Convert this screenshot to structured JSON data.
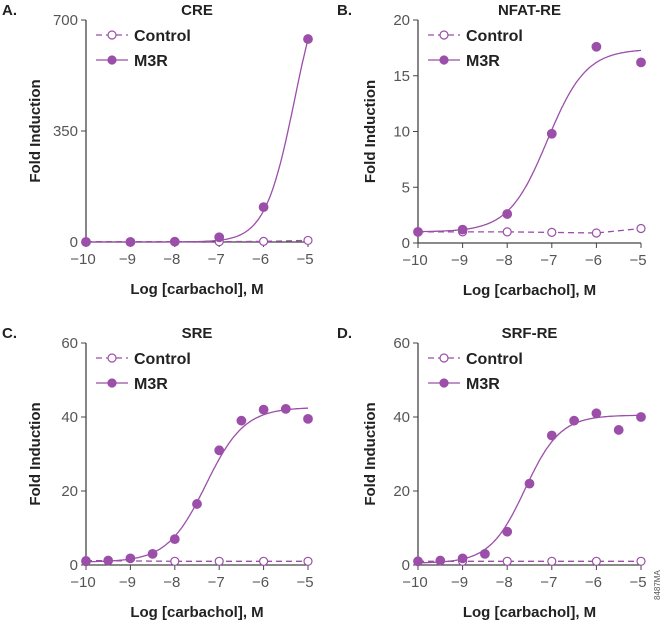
{
  "colors": {
    "series": "#9b4fa8",
    "axis": "#444444",
    "text": "#222222"
  },
  "figure_id": "8487MA",
  "chart_data": [
    {
      "type": "line",
      "panel": "A.",
      "title": "CRE",
      "xlabel": "Log [carbachol], M",
      "ylabel": "Fold Induction",
      "xlim": [
        -10,
        -5
      ],
      "ylim": [
        0,
        700
      ],
      "xticks": [
        "−10",
        "−9",
        "−8",
        "−7",
        "−6",
        "−5"
      ],
      "xtick_values": [
        -10,
        -9,
        -8,
        -7,
        -6,
        -5
      ],
      "yticks": [
        "0",
        "350",
        "700"
      ],
      "ytick_values": [
        0,
        350,
        700
      ],
      "legend": "top-left",
      "series": [
        {
          "name": "Control",
          "marker": "open-circle",
          "line": "dashed",
          "x": [
            -10,
            -9,
            -8,
            -7,
            -6,
            -5
          ],
          "y": [
            1,
            1,
            1,
            1,
            2,
            5
          ]
        },
        {
          "name": "M3R",
          "marker": "filled-circle",
          "line": "solid",
          "x": [
            -10,
            -9,
            -8,
            -7,
            -6,
            -5
          ],
          "y": [
            0,
            0,
            1,
            15,
            110,
            640
          ],
          "fit": {
            "bottom": 0,
            "top": 900,
            "logEC50": -5.3,
            "hill": 1.3
          }
        }
      ]
    },
    {
      "type": "line",
      "panel": "B.",
      "title": "NFAT-RE",
      "xlabel": "Log [carbachol], M",
      "ylabel": "Fold Induction",
      "xlim": [
        -10,
        -5
      ],
      "ylim": [
        0,
        20
      ],
      "xticks": [
        "−10",
        "−9",
        "−8",
        "−7",
        "−6",
        "−5"
      ],
      "xtick_values": [
        -10,
        -9,
        -8,
        -7,
        -6,
        -5
      ],
      "yticks": [
        "0",
        "5",
        "10",
        "15",
        "20"
      ],
      "ytick_values": [
        0,
        5,
        10,
        15,
        20
      ],
      "legend": "top-left",
      "series": [
        {
          "name": "Control",
          "marker": "open-circle",
          "line": "dashed",
          "x": [
            -10,
            -9,
            -8,
            -7,
            -6,
            -5
          ],
          "y": [
            1,
            1,
            1,
            0.95,
            0.9,
            1.3
          ]
        },
        {
          "name": "M3R",
          "marker": "filled-circle",
          "line": "solid",
          "x": [
            -10,
            -9,
            -8,
            -7,
            -6,
            -5
          ],
          "y": [
            1,
            1.2,
            2.6,
            9.8,
            17.6,
            16.2
          ],
          "fit": {
            "bottom": 1,
            "top": 17.4,
            "logEC50": -7.1,
            "hill": 1
          }
        }
      ]
    },
    {
      "type": "line",
      "panel": "C.",
      "title": "SRE",
      "xlabel": "Log [carbachol], M",
      "ylabel": "Fold Induction",
      "xlim": [
        -10,
        -5
      ],
      "ylim": [
        0,
        60
      ],
      "xticks": [
        "−10",
        "−9",
        "−8",
        "−7",
        "−6",
        "−5"
      ],
      "xtick_values": [
        -10,
        -9,
        -8,
        -7,
        -6,
        -5
      ],
      "yticks": [
        "0",
        "20",
        "40",
        "60"
      ],
      "ytick_values": [
        0,
        20,
        40,
        60
      ],
      "legend": "top-left",
      "series": [
        {
          "name": "Control",
          "marker": "open-circle",
          "line": "dashed",
          "x": [
            -10,
            -8,
            -7,
            -6,
            -5
          ],
          "y": [
            1.2,
            1,
            1,
            1,
            1
          ]
        },
        {
          "name": "M3R",
          "marker": "filled-circle",
          "line": "solid",
          "x": [
            -10,
            -9.5,
            -9,
            -8.5,
            -8,
            -7.5,
            -7,
            -6.5,
            -6,
            -5.5,
            -5
          ],
          "y": [
            1,
            1.2,
            1.8,
            3,
            7,
            16.5,
            31,
            39,
            42,
            42.2,
            39.5
          ],
          "fit": {
            "bottom": 0.8,
            "top": 42.6,
            "logEC50": -7.3,
            "hill": 1
          }
        }
      ]
    },
    {
      "type": "line",
      "panel": "D.",
      "title": "SRF-RE",
      "xlabel": "Log [carbachol], M",
      "ylabel": "Fold Induction",
      "xlim": [
        -10,
        -5
      ],
      "ylim": [
        0,
        60
      ],
      "xticks": [
        "−10",
        "−9",
        "−8",
        "−7",
        "−6",
        "−5"
      ],
      "xtick_values": [
        -10,
        -9,
        -8,
        -7,
        -6,
        -5
      ],
      "yticks": [
        "0",
        "20",
        "40",
        "60"
      ],
      "ytick_values": [
        0,
        20,
        40,
        60
      ],
      "legend": "top-left",
      "series": [
        {
          "name": "Control",
          "marker": "open-circle",
          "line": "dashed",
          "x": [
            -10,
            -9,
            -8,
            -7,
            -6,
            -5
          ],
          "y": [
            1,
            1,
            1,
            1,
            1,
            1
          ]
        },
        {
          "name": "M3R",
          "marker": "filled-circle",
          "line": "solid",
          "x": [
            -10,
            -9.5,
            -9,
            -8.5,
            -8,
            -7.5,
            -7,
            -6.5,
            -6,
            -5.5,
            -5
          ],
          "y": [
            1,
            1.2,
            1.8,
            3,
            9,
            22,
            35,
            39,
            41,
            36.5,
            40
          ],
          "fit": {
            "bottom": 0.5,
            "top": 40.5,
            "logEC50": -7.6,
            "hill": 1.1
          }
        }
      ]
    }
  ]
}
